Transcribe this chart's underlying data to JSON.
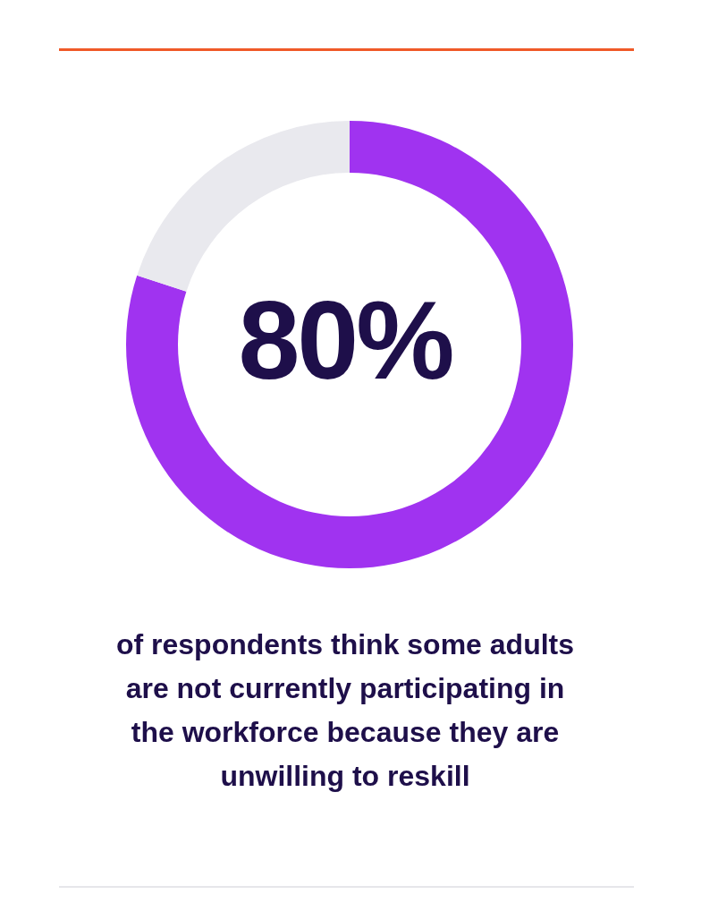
{
  "chart_data": {
    "type": "donut",
    "categories": [
      null,
      null
    ],
    "values": [
      80,
      20
    ],
    "colors": [
      "#a033f0",
      "#e9e9ee"
    ],
    "annotations": [
      "80%",
      "of respondents think some adults are not currently participating in the workforce because they are unwilling to reskill"
    ]
  }
}
